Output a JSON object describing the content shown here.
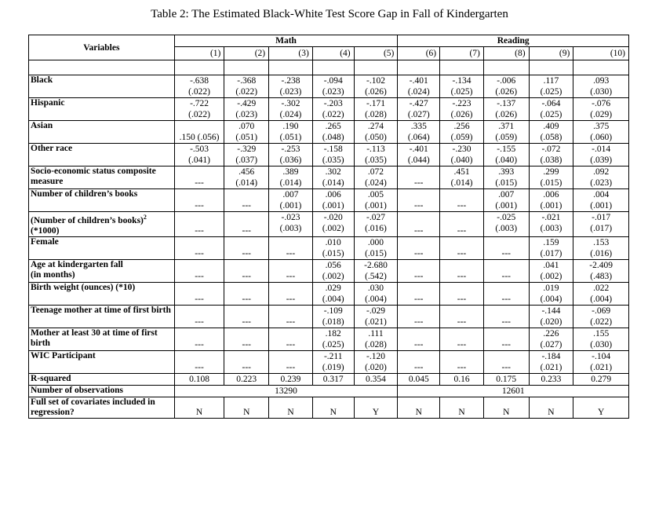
{
  "title": "Table 2: The Estimated Black-White Test Score Gap in Fall of Kindergarten",
  "header": {
    "variables_label": "Variables",
    "math_label": "Math",
    "reading_label": "Reading",
    "cols": [
      "(1)",
      "(2)",
      "(3)",
      "(4)",
      "(5)",
      "(6)",
      "(7)",
      "(8)",
      "(9)",
      "(10)"
    ]
  },
  "rows": [
    {
      "label": "Black",
      "cells": [
        [
          "-.638",
          "(.022)"
        ],
        [
          "-.368",
          "(.022)"
        ],
        [
          "-.238",
          "(.023)"
        ],
        [
          "-.094",
          "(.023)"
        ],
        [
          "-.102",
          "(.026)"
        ],
        [
          "-.401",
          "(.024)"
        ],
        [
          "-.134",
          "(.025)"
        ],
        [
          "-.006",
          "(.026)"
        ],
        [
          ".117",
          "(.025)"
        ],
        [
          ".093",
          "(.030)"
        ]
      ]
    },
    {
      "label": "Hispanic",
      "cells": [
        [
          "-.722",
          "(.022)"
        ],
        [
          "-.429",
          "(.023)"
        ],
        [
          "-.302",
          "(.024)"
        ],
        [
          "-.203",
          "(.022)"
        ],
        [
          "-.171",
          "(.028)"
        ],
        [
          "-.427",
          "(.027)"
        ],
        [
          "-.223",
          "(.026)"
        ],
        [
          "-.137",
          "(.026)"
        ],
        [
          "-.064",
          "(.025)"
        ],
        [
          "-.076",
          "(.029)"
        ]
      ]
    },
    {
      "label": "Asian",
      "cells": [
        [
          "",
          ".150 (.056)"
        ],
        [
          ".070",
          "(.051)"
        ],
        [
          ".190",
          "(.051)"
        ],
        [
          ".265",
          "(.048)"
        ],
        [
          ".274",
          "(.050)"
        ],
        [
          ".335",
          "(.064)"
        ],
        [
          ".256",
          "(.059)"
        ],
        [
          ".371",
          "(.059)"
        ],
        [
          ".409",
          "(.058)"
        ],
        [
          ".375",
          "(.060)"
        ]
      ]
    },
    {
      "label": "Other race",
      "cells": [
        [
          "-.503",
          "(.041)"
        ],
        [
          "-.329",
          "(.037)"
        ],
        [
          "-.253",
          "(.036)"
        ],
        [
          "-.158",
          "(.035)"
        ],
        [
          "-.113",
          "(.035)"
        ],
        [
          "-.401",
          "(.044)"
        ],
        [
          "-.230",
          "(.040)"
        ],
        [
          "-.155",
          "(.040)"
        ],
        [
          "-.072",
          "(.038)"
        ],
        [
          "-.014",
          "(.039)"
        ]
      ]
    },
    {
      "label": "Socio-economic status composite measure",
      "cells": [
        [
          "",
          "---"
        ],
        [
          ".456",
          "(.014)"
        ],
        [
          ".389",
          "(.014)"
        ],
        [
          ".302",
          "(.014)"
        ],
        [
          ".072",
          "(.024)"
        ],
        [
          "",
          "---"
        ],
        [
          ".451",
          "(.014)"
        ],
        [
          ".393",
          "(.015)"
        ],
        [
          ".299",
          "(.015)"
        ],
        [
          ".092",
          "(.023)"
        ]
      ]
    },
    {
      "label": "Number of children’s books",
      "cells": [
        [
          "",
          "---"
        ],
        [
          "",
          "---"
        ],
        [
          ".007",
          "(.001)"
        ],
        [
          ".006",
          "(.001)"
        ],
        [
          ".005",
          "(.001)"
        ],
        [
          "",
          "---"
        ],
        [
          "",
          "---"
        ],
        [
          ".007",
          "(.001)"
        ],
        [
          ".006",
          "(.001)"
        ],
        [
          ".004",
          "(.001)"
        ]
      ]
    },
    {
      "label": "(Number of children’s books)",
      "label2": "(*1000)",
      "cells": [
        [
          "",
          "---"
        ],
        [
          "",
          "---"
        ],
        [
          "-.023",
          "(.003)"
        ],
        [
          "-.020",
          "(.002)"
        ],
        [
          "-.027",
          "(.016)"
        ],
        [
          "",
          "---"
        ],
        [
          "",
          "---"
        ],
        [
          "-.025",
          "(.003)"
        ],
        [
          "-.021",
          "(.003)"
        ],
        [
          "-.017",
          "(.017)"
        ]
      ]
    },
    {
      "label": "Female",
      "cells": [
        [
          "",
          "---"
        ],
        [
          "",
          "---"
        ],
        [
          "",
          "---"
        ],
        [
          ".010",
          "(.015)"
        ],
        [
          ".000",
          "(.015)"
        ],
        [
          "",
          "---"
        ],
        [
          "",
          "---"
        ],
        [
          "",
          "---"
        ],
        [
          ".159",
          "(.017)"
        ],
        [
          ".153",
          "(.016)"
        ]
      ]
    },
    {
      "label": "Age at kindergarten fall",
      "label2": "(in months)",
      "cells": [
        [
          "",
          "---"
        ],
        [
          "",
          "---"
        ],
        [
          "",
          "---"
        ],
        [
          ".056",
          "(.002)"
        ],
        [
          "-2.680",
          "(.542)"
        ],
        [
          "",
          "---"
        ],
        [
          "",
          "---"
        ],
        [
          "",
          "---"
        ],
        [
          ".041",
          "(.002)"
        ],
        [
          "-2.409",
          "(.483)"
        ]
      ]
    },
    {
      "label": "Birth weight (ounces) (*10)",
      "cells": [
        [
          "",
          "---"
        ],
        [
          "",
          "---"
        ],
        [
          "",
          "---"
        ],
        [
          ".029",
          "(.004)"
        ],
        [
          ".030",
          "(.004)"
        ],
        [
          "",
          "---"
        ],
        [
          "",
          "---"
        ],
        [
          "",
          "---"
        ],
        [
          ".019",
          "(.004)"
        ],
        [
          ".022",
          "(.004)"
        ]
      ]
    },
    {
      "label": "Teenage mother at time of first birth",
      "cells": [
        [
          "",
          "---"
        ],
        [
          "",
          "---"
        ],
        [
          "",
          "---"
        ],
        [
          "-.109",
          "(.018)"
        ],
        [
          "-.029",
          "(.021)"
        ],
        [
          "",
          "---"
        ],
        [
          "",
          "---"
        ],
        [
          "",
          "---"
        ],
        [
          "-.144",
          "(.020)"
        ],
        [
          "-.069",
          "(.022)"
        ]
      ]
    },
    {
      "label": "Mother at least 30 at time of first birth",
      "cells": [
        [
          "",
          "---"
        ],
        [
          "",
          "---"
        ],
        [
          "",
          "---"
        ],
        [
          ".182",
          "(.025)"
        ],
        [
          ".111",
          "(.028)"
        ],
        [
          "",
          "---"
        ],
        [
          "",
          "---"
        ],
        [
          "",
          "---"
        ],
        [
          ".226",
          "(.027)"
        ],
        [
          ".155",
          "(.030)"
        ]
      ]
    },
    {
      "label": "WIC Participant",
      "cells": [
        [
          "",
          "---"
        ],
        [
          "",
          "---"
        ],
        [
          "",
          "---"
        ],
        [
          "-.211",
          "(.019)"
        ],
        [
          "-.120",
          "(.020)"
        ],
        [
          "",
          "---"
        ],
        [
          "",
          "---"
        ],
        [
          "",
          "---"
        ],
        [
          "-.184",
          "(.021)"
        ],
        [
          "-.104",
          "(.021)"
        ]
      ]
    }
  ],
  "r_squared": {
    "label": "R-squared",
    "values": [
      "0.108",
      "0.223",
      "0.239",
      "0.317",
      "0.354",
      "0.045",
      "0.16",
      "0.175",
      "0.233",
      "0.279"
    ]
  },
  "observations": {
    "label": "Number of observations",
    "math": "13290",
    "reading": "12601"
  },
  "covariates": {
    "label": "Full set of covariates included in regression?",
    "values": [
      "N",
      "N",
      "N",
      "N",
      "Y",
      "N",
      "N",
      "N",
      "N",
      "Y"
    ]
  }
}
